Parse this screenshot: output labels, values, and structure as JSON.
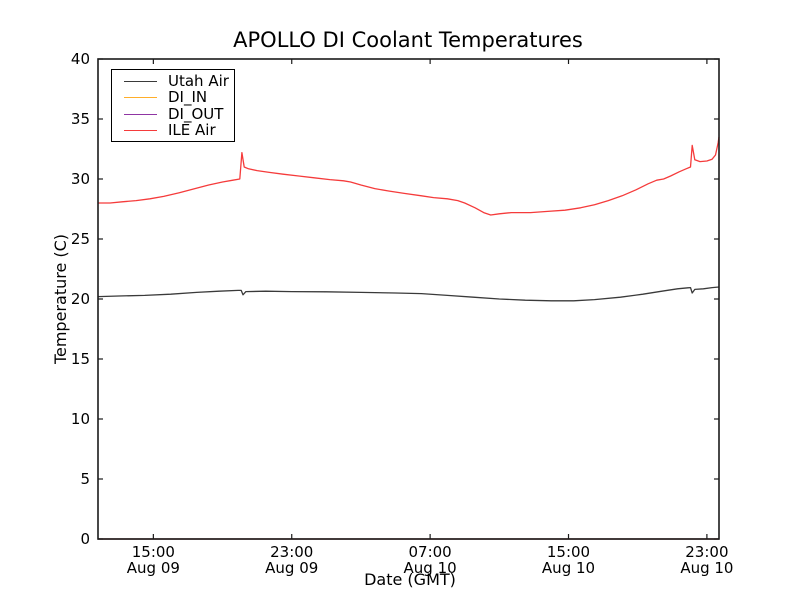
{
  "figure": {
    "background": "#ffffff",
    "axis_color": "#1a1a1a"
  },
  "chart_data": {
    "type": "line",
    "title": "APOLLO DI Coolant Temperatures",
    "xlabel": "Date (GMT)",
    "ylabel": "Temperature (C)",
    "ylim": [
      0,
      40
    ],
    "xlim_hours_from_aug09_0000": [
      11.8,
      47.7
    ],
    "grid": false,
    "legend_position": "upper-left",
    "yticks": [
      0,
      5,
      10,
      15,
      20,
      25,
      30,
      35,
      40
    ],
    "xticks": [
      {
        "hour": 15,
        "time": "15:00",
        "date": "Aug 09"
      },
      {
        "hour": 23,
        "time": "23:00",
        "date": "Aug 09"
      },
      {
        "hour": 31,
        "time": "07:00",
        "date": "Aug 10"
      },
      {
        "hour": 39,
        "time": "15:00",
        "date": "Aug 10"
      },
      {
        "hour": 47,
        "time": "23:00",
        "date": "Aug 10"
      }
    ],
    "series": [
      {
        "name": "Utah Air",
        "color": "#3a3a3a",
        "points": [
          [
            11.8,
            20.2
          ],
          [
            13.0,
            20.25
          ],
          [
            14.5,
            20.3
          ],
          [
            16.0,
            20.4
          ],
          [
            17.5,
            20.55
          ],
          [
            18.8,
            20.65
          ],
          [
            19.9,
            20.72
          ],
          [
            20.08,
            20.72
          ],
          [
            20.18,
            20.35
          ],
          [
            20.35,
            20.62
          ],
          [
            21.5,
            20.65
          ],
          [
            23.0,
            20.62
          ],
          [
            25.0,
            20.6
          ],
          [
            27.0,
            20.55
          ],
          [
            29.0,
            20.5
          ],
          [
            30.5,
            20.45
          ],
          [
            32.0,
            20.3
          ],
          [
            33.5,
            20.15
          ],
          [
            35.0,
            20.0
          ],
          [
            36.5,
            19.9
          ],
          [
            38.0,
            19.85
          ],
          [
            39.3,
            19.85
          ],
          [
            40.5,
            19.95
          ],
          [
            42.0,
            20.15
          ],
          [
            43.3,
            20.4
          ],
          [
            44.4,
            20.65
          ],
          [
            45.3,
            20.85
          ],
          [
            45.9,
            20.93
          ],
          [
            46.05,
            20.95
          ],
          [
            46.15,
            20.5
          ],
          [
            46.3,
            20.8
          ],
          [
            46.8,
            20.85
          ],
          [
            47.3,
            20.95
          ],
          [
            47.7,
            21.0
          ]
        ]
      },
      {
        "name": "DI_IN",
        "color": "#ffae2a",
        "points": [
          [
            11.8,
            0
          ],
          [
            47.7,
            0
          ]
        ]
      },
      {
        "name": "DI_OUT",
        "color": "#8f35a3",
        "points": [
          [
            11.8,
            0
          ],
          [
            47.7,
            0
          ]
        ]
      },
      {
        "name": "ILE Air",
        "color": "#f53b3b",
        "points": [
          [
            11.8,
            28.0
          ],
          [
            12.5,
            28.0
          ],
          [
            13.2,
            28.1
          ],
          [
            14.0,
            28.2
          ],
          [
            14.8,
            28.35
          ],
          [
            15.6,
            28.55
          ],
          [
            16.5,
            28.85
          ],
          [
            17.4,
            29.2
          ],
          [
            18.2,
            29.5
          ],
          [
            19.0,
            29.75
          ],
          [
            19.6,
            29.9
          ],
          [
            20.0,
            30.0
          ],
          [
            20.12,
            32.2
          ],
          [
            20.25,
            31.0
          ],
          [
            20.5,
            30.85
          ],
          [
            21.0,
            30.7
          ],
          [
            21.7,
            30.55
          ],
          [
            22.5,
            30.4
          ],
          [
            23.4,
            30.25
          ],
          [
            24.3,
            30.1
          ],
          [
            25.2,
            29.95
          ],
          [
            26.0,
            29.85
          ],
          [
            26.4,
            29.75
          ],
          [
            27.0,
            29.5
          ],
          [
            27.8,
            29.2
          ],
          [
            28.6,
            29.0
          ],
          [
            29.5,
            28.8
          ],
          [
            30.5,
            28.6
          ],
          [
            31.2,
            28.45
          ],
          [
            32.0,
            28.35
          ],
          [
            32.6,
            28.2
          ],
          [
            33.0,
            28.0
          ],
          [
            33.6,
            27.6
          ],
          [
            34.1,
            27.2
          ],
          [
            34.5,
            27.0
          ],
          [
            35.0,
            27.1
          ],
          [
            35.7,
            27.2
          ],
          [
            36.8,
            27.2
          ],
          [
            37.8,
            27.3
          ],
          [
            38.8,
            27.4
          ],
          [
            39.7,
            27.6
          ],
          [
            40.5,
            27.85
          ],
          [
            41.3,
            28.2
          ],
          [
            42.1,
            28.6
          ],
          [
            42.9,
            29.1
          ],
          [
            43.6,
            29.6
          ],
          [
            44.1,
            29.9
          ],
          [
            44.5,
            30.0
          ],
          [
            44.9,
            30.25
          ],
          [
            45.4,
            30.6
          ],
          [
            45.8,
            30.85
          ],
          [
            46.05,
            31.0
          ],
          [
            46.15,
            32.8
          ],
          [
            46.3,
            31.6
          ],
          [
            46.6,
            31.45
          ],
          [
            47.0,
            31.5
          ],
          [
            47.3,
            31.65
          ],
          [
            47.5,
            32.0
          ],
          [
            47.65,
            33.0
          ],
          [
            47.7,
            33.5
          ]
        ]
      }
    ]
  }
}
